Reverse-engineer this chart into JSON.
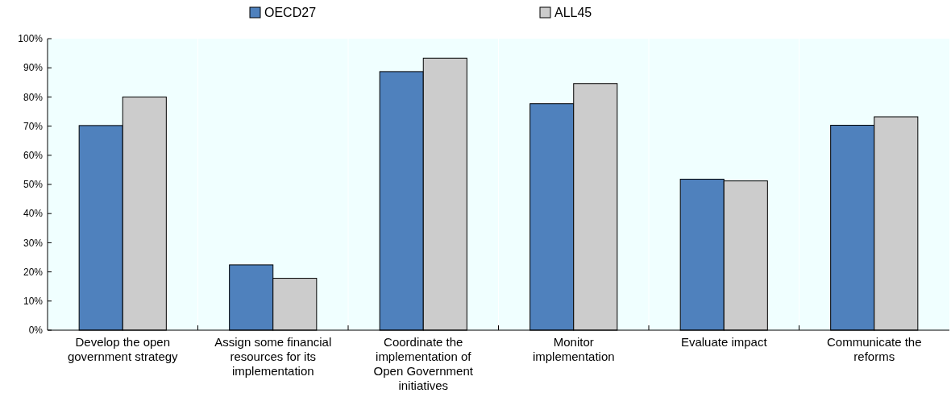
{
  "chart_data": {
    "type": "bar",
    "categories": [
      "Develop the open government strategy",
      "Assign some financial resources for its implementation",
      "Coordinate the implementation of Open Government initiatives",
      "Monitor implementation",
      "Evaluate impact",
      "Communicate the reforms"
    ],
    "series": [
      {
        "name": "OECD27",
        "color": "#4f81bd",
        "values": [
          70.2,
          22.4,
          88.7,
          77.7,
          51.8,
          70.3
        ]
      },
      {
        "name": "ALL45",
        "color": "#cccccc",
        "values": [
          80,
          17.8,
          93.3,
          84.6,
          51.2,
          73.2
        ]
      }
    ],
    "ylim": [
      0,
      100
    ],
    "yticks": [
      {
        "value": 0,
        "label": "0%"
      },
      {
        "value": 10,
        "label": "10%"
      },
      {
        "value": 20,
        "label": "20%"
      },
      {
        "value": 30,
        "label": "30%"
      },
      {
        "value": 40,
        "label": "40%"
      },
      {
        "value": 50,
        "label": "50%"
      },
      {
        "value": 60,
        "label": "60%"
      },
      {
        "value": 70,
        "label": "70%"
      },
      {
        "value": 80,
        "label": "80%"
      },
      {
        "value": 90,
        "label": "90%"
      },
      {
        "value": 100,
        "label": "100%"
      }
    ],
    "legend": "top",
    "grid": false
  }
}
